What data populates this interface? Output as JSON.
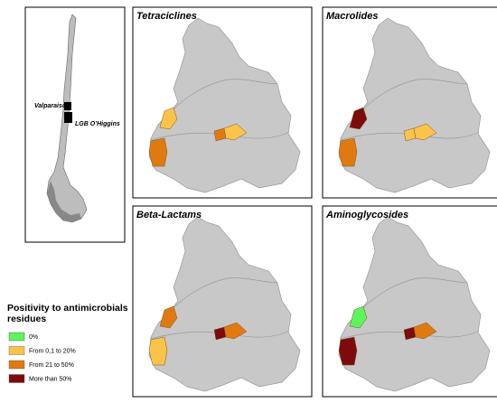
{
  "inset": {
    "labels": [
      "Valparaiso",
      "LGB O’Higgins"
    ]
  },
  "panels": [
    {
      "title": "Tetraciclines",
      "districts": [
        "#fbc34a",
        "#e07a10",
        "#e07a10",
        "#fbc34a"
      ]
    },
    {
      "title": "Macrolides",
      "districts": [
        "#7d0b0b",
        "#e07a10",
        "#fbc34a",
        "#fbc34a"
      ]
    },
    {
      "title": "Beta-Lactams",
      "districts": [
        "#e07a10",
        "#fbc34a",
        "#7d0b0b",
        "#e07a10"
      ]
    },
    {
      "title": "Aminoglycosides",
      "districts": [
        "#5cf55c",
        "#7d0b0b",
        "#7d0b0b",
        "#e07a10"
      ]
    }
  ],
  "legend": {
    "title": "Positivity to antimicrobials residues",
    "items": [
      {
        "label": "0%",
        "color": "#5cf55c"
      },
      {
        "label": "From 0,1 to 20%",
        "color": "#fbc34a"
      },
      {
        "label": "From 21 to 50%",
        "color": "#e07a10"
      },
      {
        "label": "More than 50%",
        "color": "#7d0b0b"
      }
    ]
  }
}
